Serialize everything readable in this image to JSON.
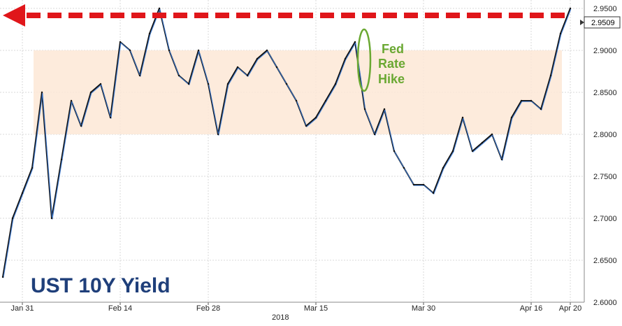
{
  "chart_data": {
    "type": "line",
    "title": "UST 10Y Yield",
    "year_label": "2018",
    "x_ticks": [
      "Jan 31",
      "Feb 14",
      "Feb 28",
      "Mar 15",
      "Mar 30",
      "Apr 16",
      "Apr 20"
    ],
    "y_ticks": [
      "2.6000",
      "2.6500",
      "2.7000",
      "2.7500",
      "2.8000",
      "2.8500",
      "2.9000",
      "2.9500"
    ],
    "ylim": [
      2.6,
      2.96
    ],
    "grid": true,
    "last_value_label": "2.9509",
    "last_value": 2.9509,
    "range_band": [
      2.8,
      2.9
    ],
    "annotation": {
      "lines": [
        "Fed",
        "Rate",
        "Hike"
      ]
    },
    "series": [
      {
        "x": [
          "Jan 29",
          "Jan 30",
          "Jan 31",
          "Feb 01",
          "Feb 02",
          "Feb 05",
          "Feb 06",
          "Feb 07",
          "Feb 08",
          "Feb 09",
          "Feb 12",
          "Feb 13",
          "Feb 14",
          "Feb 15",
          "Feb 16",
          "Feb 20",
          "Feb 21",
          "Feb 22",
          "Feb 23",
          "Feb 26",
          "Feb 27",
          "Feb 28",
          "Mar 01",
          "Mar 02",
          "Mar 05",
          "Mar 06",
          "Mar 07",
          "Mar 08",
          "Mar 09",
          "Mar 12",
          "Mar 13",
          "Mar 14",
          "Mar 15",
          "Mar 16",
          "Mar 19",
          "Mar 20",
          "Mar 21",
          "Mar 22",
          "Mar 23",
          "Mar 26",
          "Mar 27",
          "Mar 28",
          "Mar 29",
          "Mar 30",
          "Apr 02",
          "Apr 03",
          "Apr 04",
          "Apr 05",
          "Apr 06",
          "Apr 09",
          "Apr 10",
          "Apr 11",
          "Apr 12",
          "Apr 13",
          "Apr 16",
          "Apr 17",
          "Apr 18",
          "Apr 19",
          "Apr 20"
        ],
        "values": [
          2.63,
          2.7,
          2.73,
          2.76,
          2.85,
          2.7,
          2.77,
          2.84,
          2.81,
          2.85,
          2.86,
          2.82,
          2.91,
          2.9,
          2.87,
          2.92,
          2.95,
          2.9,
          2.87,
          2.86,
          2.9,
          2.86,
          2.8,
          2.86,
          2.88,
          2.87,
          2.89,
          2.9,
          2.88,
          2.86,
          2.84,
          2.81,
          2.82,
          2.84,
          2.86,
          2.89,
          2.91,
          2.83,
          2.8,
          2.83,
          2.78,
          2.76,
          2.74,
          2.74,
          2.73,
          2.76,
          2.78,
          2.82,
          2.78,
          2.79,
          2.8,
          2.77,
          2.82,
          2.84,
          2.84,
          2.83,
          2.87,
          2.92,
          2.95
        ]
      }
    ]
  }
}
